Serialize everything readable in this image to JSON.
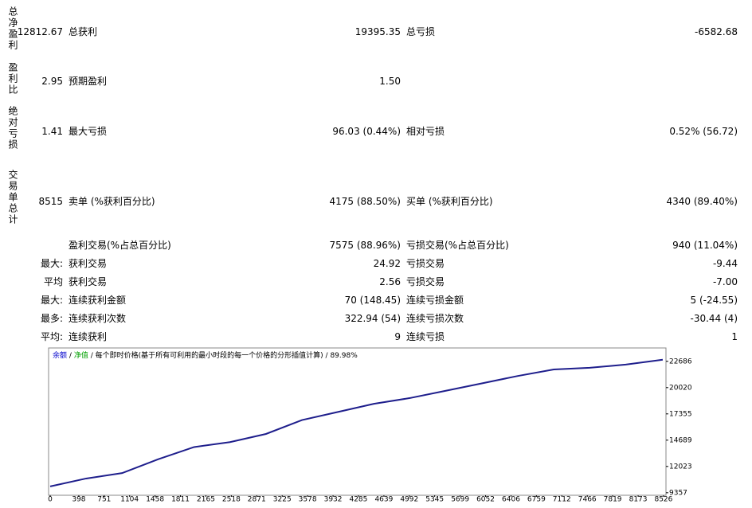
{
  "report": {
    "rows": [
      {
        "heading": "总净盈利",
        "value": "12812.67",
        "cells": [
          "总获利",
          "19395.35",
          "总亏损",
          "-6582.68"
        ]
      },
      {
        "heading": "盈利比",
        "value": "2.95",
        "cells": [
          "预期盈利",
          "1.50"
        ]
      },
      {
        "heading": "绝对亏损",
        "value": "1.41",
        "cells": [
          "最大亏损",
          "96.03 (0.44%)",
          "相对亏损",
          "0.52% (56.72)"
        ]
      },
      {
        "heading": "交易单总计",
        "value": "8515",
        "cells": [
          "卖单 (%获利百分比)",
          "4175 (88.50%)",
          "买单 (%获利百分比)",
          "4340 (89.40%)"
        ]
      },
      {
        "cells": [
          "盈利交易(%占总百分比)",
          "7575 (88.96%)",
          "亏损交易(%占总百分比)",
          "940 (11.04%)"
        ]
      },
      {
        "value": "最大:",
        "cells": [
          "获利交易",
          "24.92",
          "亏损交易",
          "-9.44"
        ]
      },
      {
        "value": "平均",
        "cells": [
          "获利交易",
          "2.56",
          "亏损交易",
          "-7.00"
        ]
      },
      {
        "value": "最大:",
        "cells": [
          "连续获利金额",
          "70 (148.45)",
          "连续亏损金额",
          "5 (-24.55)"
        ]
      },
      {
        "value": "最多:",
        "cells": [
          "连续获利次数",
          "322.94 (54)",
          "连续亏损次数",
          "-30.44 (4)"
        ]
      },
      {
        "value": "平均:",
        "cells": [
          "连续获利",
          "9",
          "连续亏损",
          "1"
        ]
      }
    ]
  },
  "chart_data": {
    "type": "line",
    "separator": "/",
    "model": "每个即时价格(基于所有可利用的最小时段的每一个价格的分形插值计算)",
    "quality": "89.98%",
    "x": [
      0,
      500,
      1000,
      1500,
      2000,
      2500,
      3000,
      3500,
      4000,
      4500,
      5000,
      5500,
      6000,
      6500,
      7000,
      7500,
      8000,
      8515
    ],
    "series": [
      {
        "name": "余额",
        "color": "#0000cc",
        "line_color": "#1e1e8c",
        "values": [
          10000,
          10800,
          11350,
          12750,
          13990,
          14490,
          15320,
          16730,
          17550,
          18380,
          18960,
          19700,
          20450,
          21200,
          21860,
          22030,
          22360,
          22850
        ]
      },
      {
        "name": "净值",
        "color": "#00a000"
      }
    ],
    "xlim": [
      0,
      8560
    ],
    "xticks": [
      0,
      398,
      751,
      1104,
      1458,
      1811,
      2165,
      2518,
      2871,
      3225,
      3578,
      3932,
      4285,
      4639,
      4992,
      5345,
      5699,
      6052,
      6406,
      6759,
      7112,
      7466,
      7819,
      8173,
      8526
    ],
    "ylim": [
      9100,
      23800
    ],
    "yticks": [
      9357,
      12023,
      14689,
      17355,
      20020,
      22686
    ]
  }
}
